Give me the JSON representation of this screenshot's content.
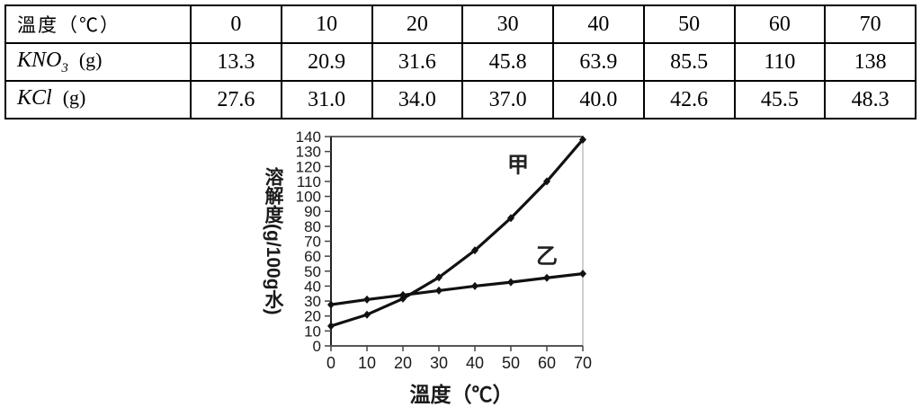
{
  "table": {
    "header": {
      "label": "溫度（℃）",
      "temps": [
        "0",
        "10",
        "20",
        "30",
        "40",
        "50",
        "60",
        "70"
      ]
    },
    "rows": [
      {
        "formula": "KNO",
        "subscript": "3",
        "unit": "(g)",
        "values": [
          "13.3",
          "20.9",
          "31.6",
          "45.8",
          "63.9",
          "85.5",
          "110",
          "138"
        ]
      },
      {
        "formula": "KCl",
        "subscript": "",
        "unit": "(g)",
        "values": [
          "27.6",
          "31.0",
          "34.0",
          "37.0",
          "40.0",
          "42.6",
          "45.5",
          "48.3"
        ]
      }
    ]
  },
  "chart_data": {
    "type": "line",
    "title": "",
    "x": [
      0,
      10,
      20,
      30,
      40,
      50,
      60,
      70
    ],
    "series": [
      {
        "name": "甲",
        "values": [
          13.3,
          20.9,
          31.6,
          45.8,
          63.9,
          85.5,
          110,
          138
        ],
        "label_x": 52,
        "label_y": 121
      },
      {
        "name": "乙",
        "values": [
          27.6,
          31.0,
          34.0,
          37.0,
          40.0,
          42.6,
          45.5,
          48.3
        ],
        "label_x": 60,
        "label_y": 60
      }
    ],
    "xlabel": "溫度（℃）",
    "ylabel": "溶解度(g/100g水)",
    "xlim": [
      0,
      70
    ],
    "ylim": [
      0,
      140
    ],
    "xtick_step": 10,
    "ytick_step": 10,
    "grid": false,
    "legend_position": "inline-labels",
    "line_color": "#111111",
    "axis_color": "#444444",
    "frame_color": "#b5b5b5",
    "text_color": "#1a1a1a"
  }
}
